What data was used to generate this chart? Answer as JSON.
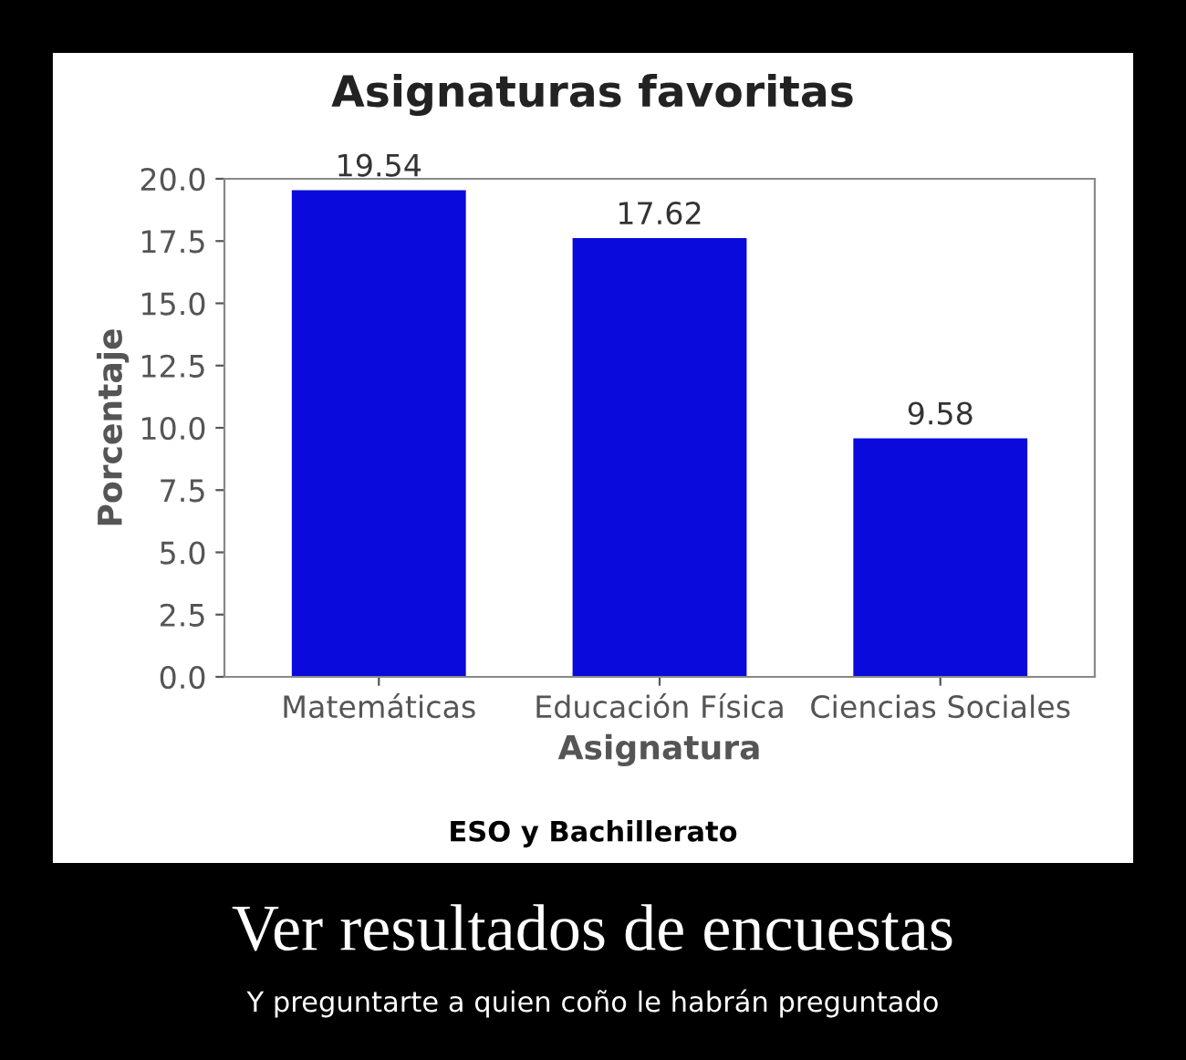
{
  "chart_data": {
    "type": "bar",
    "title": "Asignaturas favoritas",
    "xlabel": "Asignatura",
    "ylabel": "Porcentaje",
    "categories": [
      "Matemáticas",
      "Educación Física",
      "Ciencias Sociales"
    ],
    "values": [
      19.54,
      17.62,
      9.58
    ],
    "color": "#0a0adc",
    "ylim": [
      0,
      20
    ],
    "yticks": [
      {
        "value": 0,
        "label": "0.0"
      },
      {
        "value": 2.5,
        "label": "2.5"
      },
      {
        "value": 5,
        "label": "5.0"
      },
      {
        "value": 7.5,
        "label": "7.5"
      },
      {
        "value": 10,
        "label": "10.0"
      },
      {
        "value": 12.5,
        "label": "12.5"
      },
      {
        "value": 15,
        "label": "15.0"
      },
      {
        "value": 17.5,
        "label": "17.5"
      },
      {
        "value": 20,
        "label": "20.0"
      }
    ],
    "grid": false,
    "legend": false,
    "data_labels": true,
    "annotations": [
      "ESO y Bachillerato",
      "Ver resultados de encuestas",
      "Y preguntarte a quien coño le habrán preguntado"
    ]
  }
}
